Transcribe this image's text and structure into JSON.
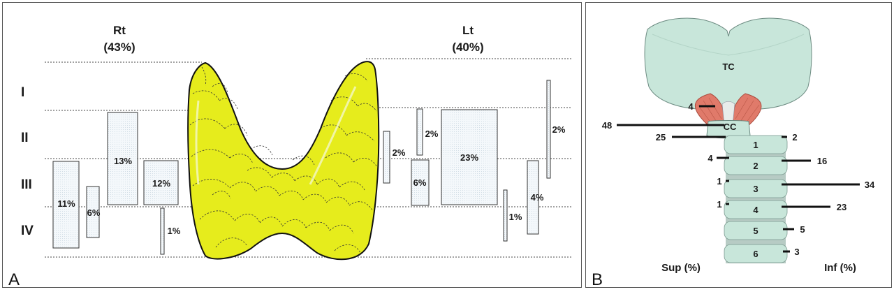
{
  "panel_a": {
    "letter": "A",
    "right_side": {
      "title": "Rt",
      "percent": "(43%)"
    },
    "left_side": {
      "title": "Lt",
      "percent": "(40%)"
    },
    "levels": [
      "I",
      "II",
      "III",
      "IV"
    ],
    "right_boxes": [
      "11%",
      "6%",
      "13%",
      "12%",
      "1%"
    ],
    "left_boxes": [
      "2%",
      "2%",
      "6%",
      "23%",
      "1%",
      "4%",
      "2%"
    ]
  },
  "panel_b": {
    "letter": "B",
    "labels": {
      "tc": "TC",
      "cc": "CC",
      "sup": "Sup (%)",
      "inf": "Inf (%)"
    },
    "rings": [
      "1",
      "2",
      "3",
      "4",
      "5",
      "6"
    ],
    "sup_values": [
      "4",
      "48",
      "25",
      "4",
      "1",
      "1"
    ],
    "inf_values": [
      "2",
      "16",
      "34",
      "23",
      "5",
      "3"
    ]
  },
  "colors": {
    "gland": "#e6ec1c",
    "cartilage": "#c8e6da",
    "muscle": "#e07a6a",
    "box_fill": "#eef4f8"
  }
}
